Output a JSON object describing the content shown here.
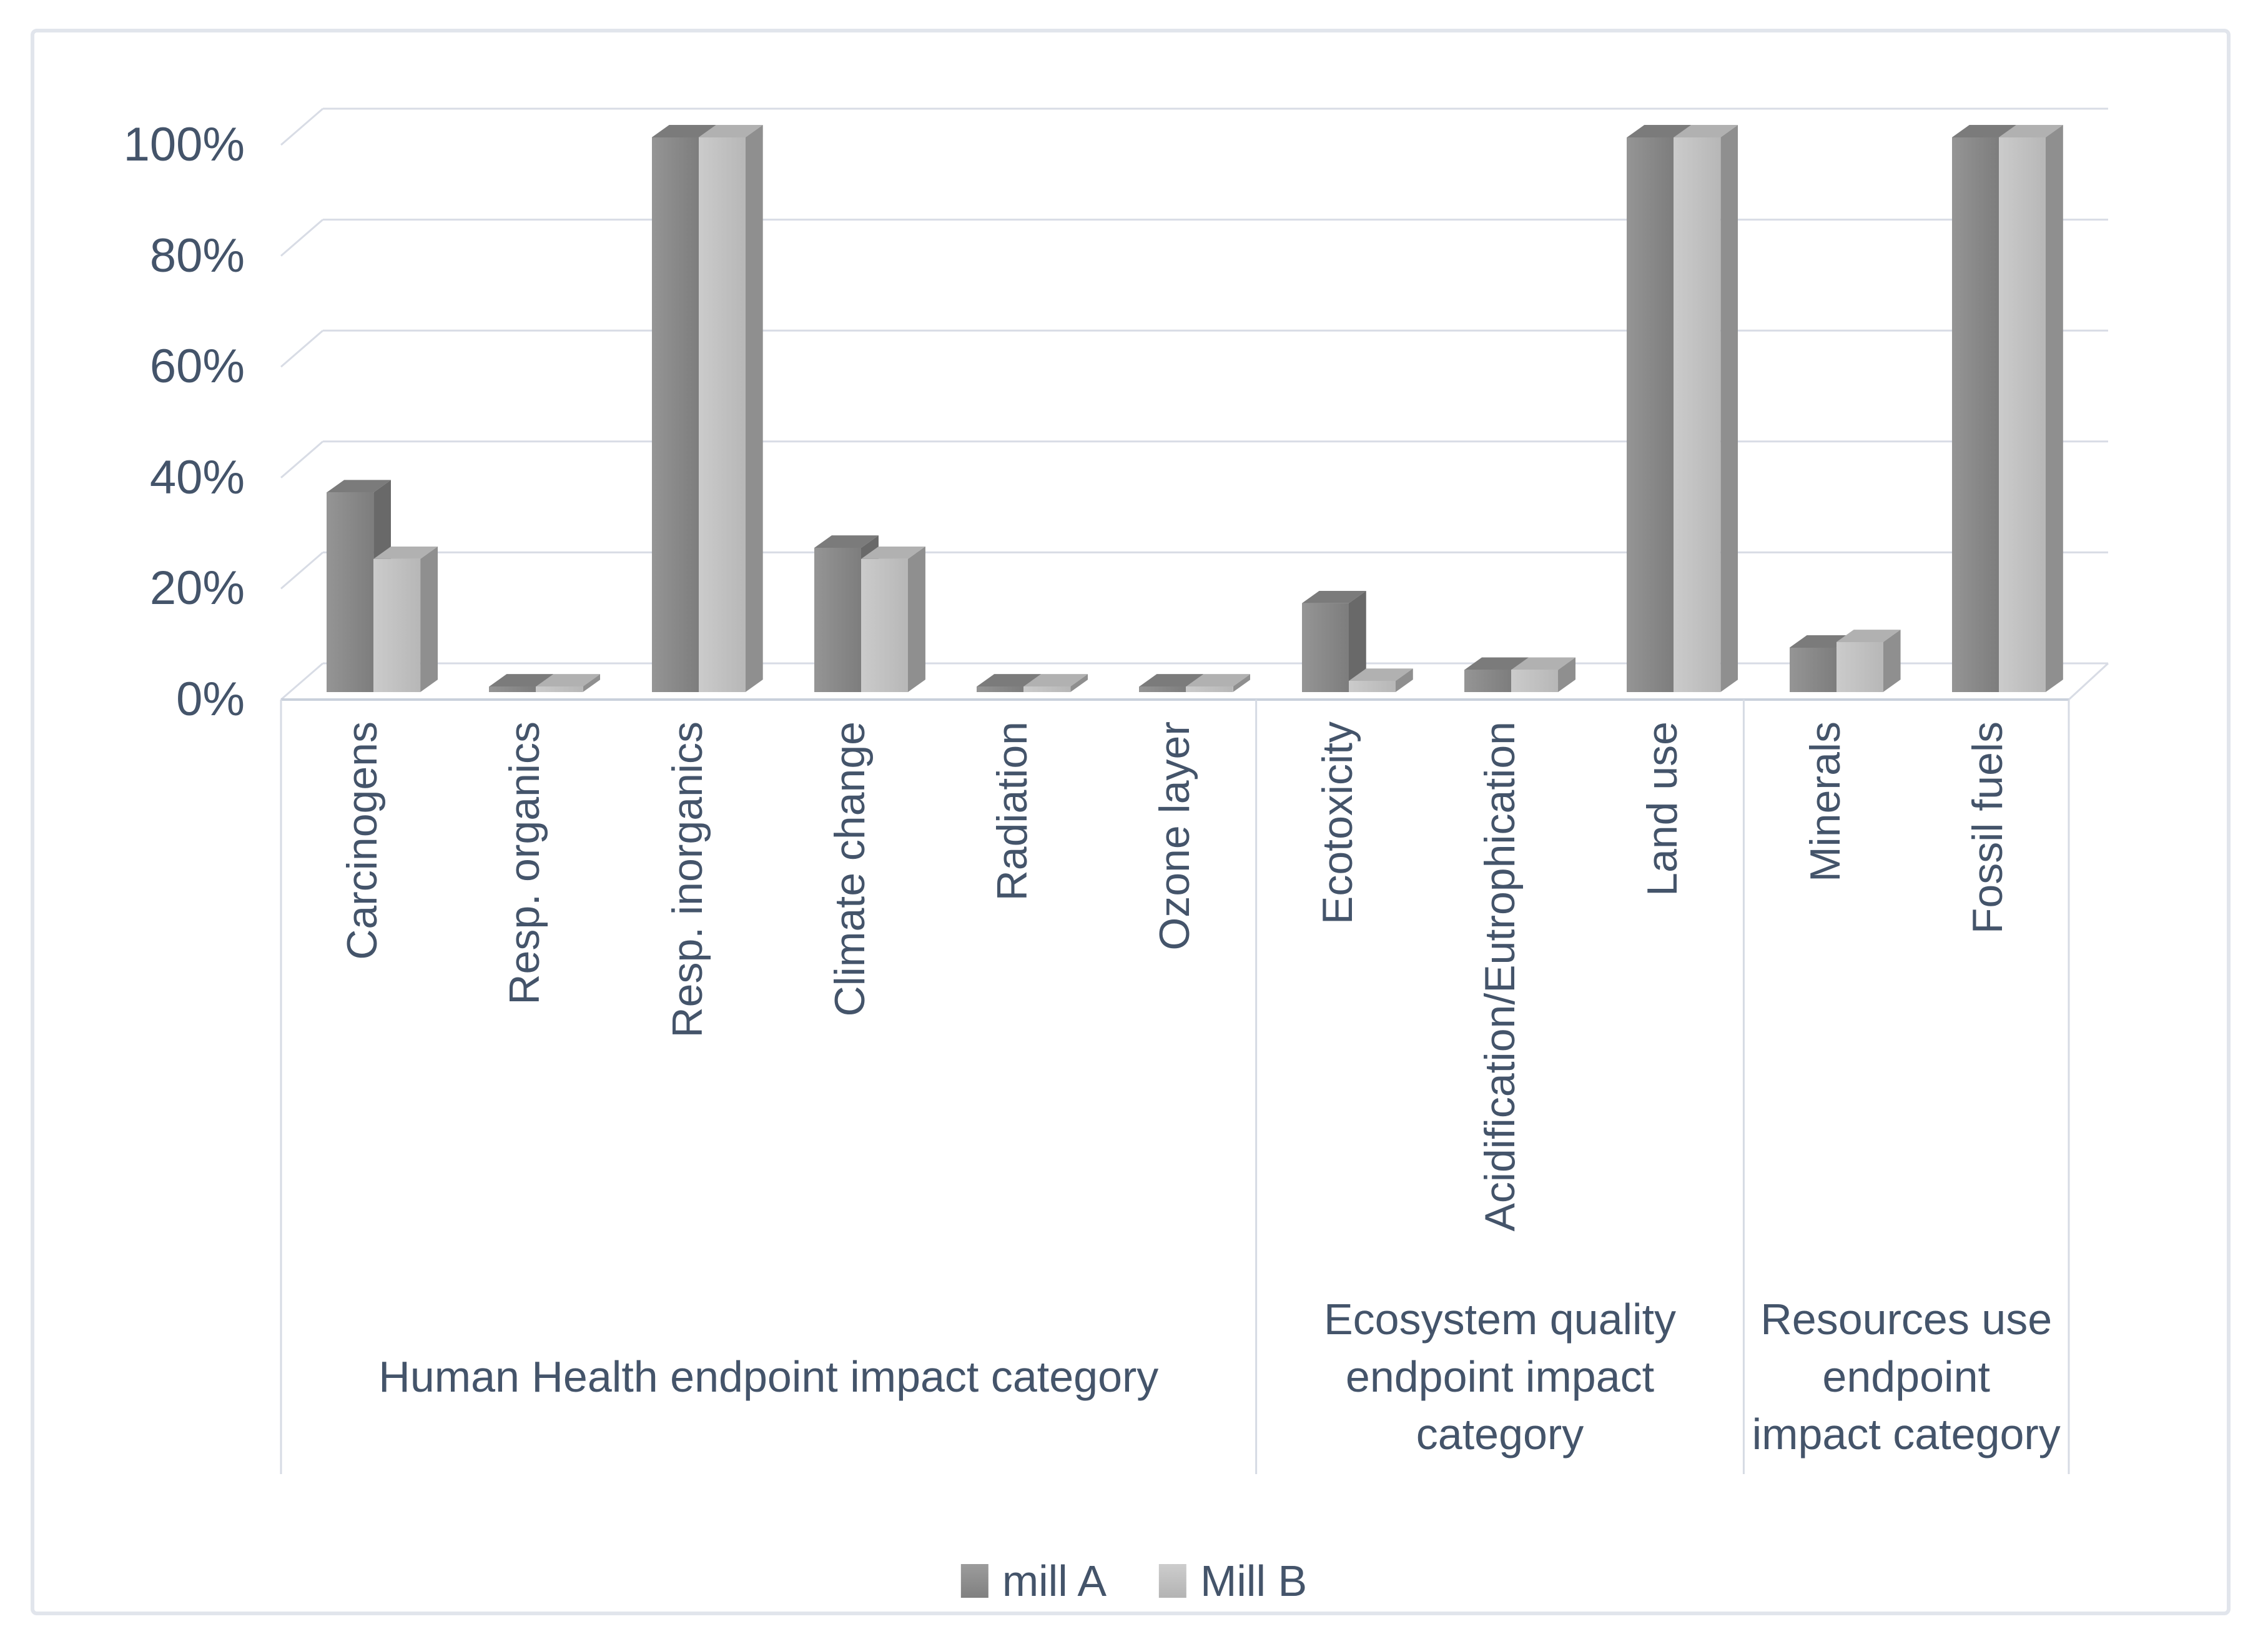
{
  "chart_data": {
    "type": "bar",
    "subtype": "3d-clustered-column",
    "title": "",
    "categories": [
      "Carcinogens",
      "Resp. organics",
      "Resp. inorganics",
      "Climate change",
      "Radiation",
      "Ozone layer",
      "Ecotoxicity",
      "Acidification/Eutrophication",
      "Land use",
      "Minerals",
      "Fossil fuels"
    ],
    "series": [
      {
        "name": "mill A",
        "values": [
          36,
          1,
          100,
          26,
          1,
          1,
          16,
          4,
          100,
          8,
          100
        ]
      },
      {
        "name": "Mill B",
        "values": [
          24,
          1,
          100,
          24,
          1,
          1,
          2,
          4,
          100,
          9,
          100
        ]
      }
    ],
    "category_groups": [
      {
        "lines": [
          "Human Health endpoint impact category"
        ],
        "span": [
          0,
          5
        ]
      },
      {
        "lines": [
          "Ecosystem quality",
          "endpoint impact",
          "category"
        ],
        "span": [
          6,
          8
        ]
      },
      {
        "lines": [
          "Resources use",
          "endpoint",
          "impact category"
        ],
        "span": [
          9,
          10
        ]
      }
    ],
    "yticks": [
      "0%",
      "20%",
      "40%",
      "60%",
      "80%",
      "100%"
    ],
    "ylim": [
      0,
      100
    ],
    "grid": true,
    "legend_position": "bottom"
  },
  "legend": {
    "items": [
      {
        "label": "mill A",
        "color": "#8A8A8A"
      },
      {
        "label": "Mill B",
        "color": "#C1C1C1"
      }
    ]
  },
  "colors": {
    "text": "#44546A",
    "gridline": "#D8DCE5",
    "box_line": "#D6DBE4",
    "baseline": "#C9D0DB",
    "figure_border": "#E1E5EC",
    "series": [
      {
        "front_left": "#959595",
        "front_right": "#7D7D7D",
        "top": "#7B7B7B",
        "side": "#696969"
      },
      {
        "front_left": "#CBCBCB",
        "front_right": "#B7B7B7",
        "top": "#B1B1B1",
        "side": "#8F8F8F"
      }
    ]
  }
}
